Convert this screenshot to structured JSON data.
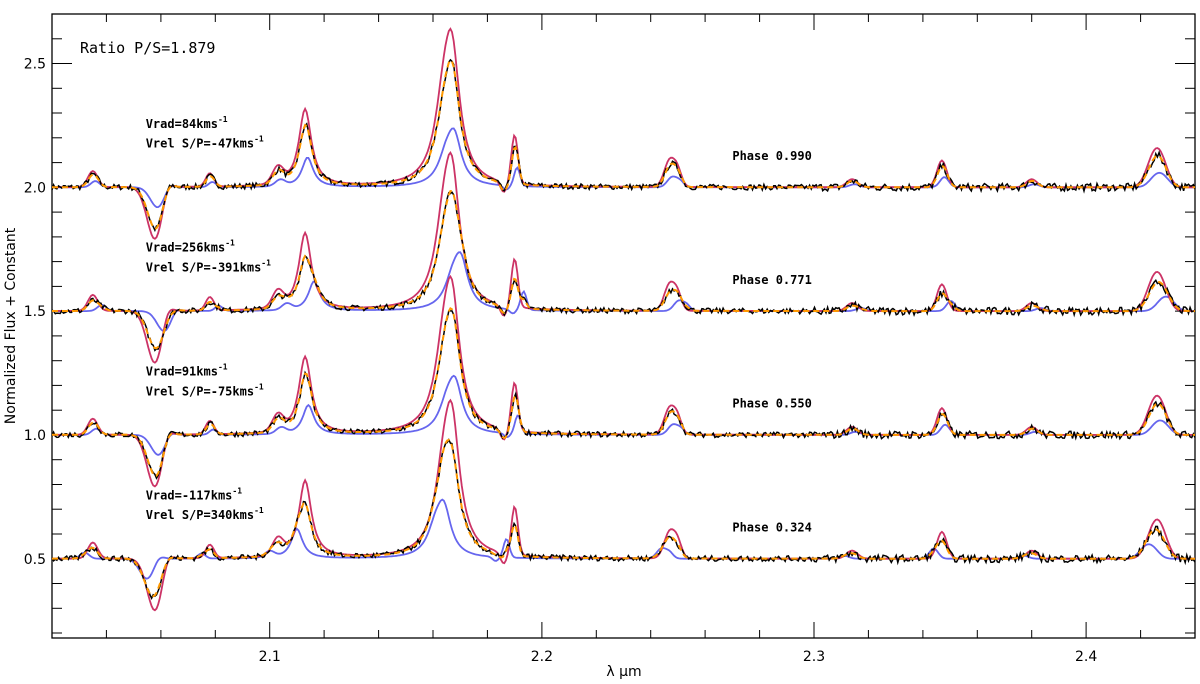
{
  "chart_data": {
    "type": "line",
    "title": "",
    "xlabel": "λ μm",
    "ylabel": "Normalized Flux + Constant",
    "xlim": [
      2.02,
      2.44
    ],
    "ylim": [
      0.18,
      2.7
    ],
    "x_ticks": [
      2.1,
      2.2,
      2.3,
      2.4
    ],
    "x_tick_labels": [
      "2.1",
      "2.2",
      "2.3",
      "2.4"
    ],
    "y_ticks": [
      0.5,
      1.0,
      1.5,
      2.0,
      2.5
    ],
    "y_tick_labels": [
      "0.5",
      "1.0",
      "1.5",
      "2.0",
      "2.5"
    ],
    "ratio_label": "Ratio P/S=1.879",
    "series_colors": {
      "observed": "#000000",
      "primary": "#cc3366",
      "secondary": "#6666ee",
      "combined": "#ff9900",
      "combined_dash": "#ffbb00"
    },
    "panels": [
      {
        "offset": 2.0,
        "phase": "Phase 0.990",
        "vrad": "Vrad=84kms",
        "vrel": "Vrel S/P=-47kms",
        "unit_sup": "-1",
        "vrad_wl": 2.1,
        "vrel_wl": 2.1,
        "label_y1": 2.24,
        "label_y2": 2.16,
        "phase_wl": 2.27,
        "phase_y": 2.11,
        "vs": 0.6,
        "lines": [
          [
            2.035,
            0.06,
            0.0018
          ],
          [
            2.058,
            -0.2,
            0.003
          ],
          [
            2.062,
            0.05,
            0.002
          ],
          [
            2.078,
            0.05,
            0.0015
          ],
          [
            2.103,
            0.06,
            0.002
          ],
          [
            2.113,
            0.29,
            0.0028
          ],
          [
            2.164,
            0.25,
            0.004
          ],
          [
            2.167,
            0.42,
            0.0035
          ],
          [
            2.19,
            0.18,
            0.0012
          ],
          [
            2.186,
            -0.04,
            0.0012
          ],
          [
            2.247,
            0.1,
            0.002
          ],
          [
            2.25,
            0.05,
            0.0015
          ],
          [
            2.314,
            0.03,
            0.002
          ],
          [
            2.347,
            0.1,
            0.0018
          ],
          [
            2.38,
            0.03,
            0.002
          ],
          [
            2.425,
            0.11,
            0.0028
          ],
          [
            2.428,
            0.06,
            0.0025
          ]
        ]
      },
      {
        "offset": 1.5,
        "phase": "Phase 0.771",
        "vrad": "Vrad=256kms",
        "vrel": "Vrel S/P=-391kms",
        "unit_sup": "-1",
        "vrad_wl": 2.1,
        "vrel_wl": 2.1,
        "label_y1": 1.74,
        "label_y2": 1.66,
        "phase_wl": 2.27,
        "phase_y": 1.61,
        "vs": 2.2,
        "lines": [
          [
            2.035,
            0.06,
            0.0018
          ],
          [
            2.058,
            -0.2,
            0.003
          ],
          [
            2.062,
            0.05,
            0.002
          ],
          [
            2.078,
            0.05,
            0.0015
          ],
          [
            2.103,
            0.06,
            0.002
          ],
          [
            2.113,
            0.29,
            0.0028
          ],
          [
            2.164,
            0.25,
            0.004
          ],
          [
            2.167,
            0.42,
            0.0035
          ],
          [
            2.19,
            0.18,
            0.0012
          ],
          [
            2.186,
            -0.04,
            0.0012
          ],
          [
            2.247,
            0.1,
            0.002
          ],
          [
            2.25,
            0.05,
            0.0015
          ],
          [
            2.314,
            0.03,
            0.002
          ],
          [
            2.347,
            0.1,
            0.0018
          ],
          [
            2.38,
            0.03,
            0.002
          ],
          [
            2.425,
            0.11,
            0.0028
          ],
          [
            2.428,
            0.06,
            0.0025
          ]
        ]
      },
      {
        "offset": 1.0,
        "phase": "Phase 0.550",
        "vrad": "Vrad=91kms",
        "vrel": "Vrel S/P=-75kms",
        "unit_sup": "-1",
        "vrad_wl": 2.1,
        "vrel_wl": 2.1,
        "label_y1": 1.24,
        "label_y2": 1.16,
        "phase_wl": 2.27,
        "phase_y": 1.11,
        "vs": 0.8,
        "lines": [
          [
            2.035,
            0.06,
            0.0018
          ],
          [
            2.058,
            -0.2,
            0.003
          ],
          [
            2.062,
            0.05,
            0.002
          ],
          [
            2.078,
            0.05,
            0.0015
          ],
          [
            2.103,
            0.06,
            0.002
          ],
          [
            2.113,
            0.29,
            0.0028
          ],
          [
            2.164,
            0.25,
            0.004
          ],
          [
            2.167,
            0.42,
            0.0035
          ],
          [
            2.19,
            0.18,
            0.0012
          ],
          [
            2.186,
            -0.04,
            0.0012
          ],
          [
            2.247,
            0.1,
            0.002
          ],
          [
            2.25,
            0.05,
            0.0015
          ],
          [
            2.314,
            0.03,
            0.002
          ],
          [
            2.347,
            0.1,
            0.0018
          ],
          [
            2.38,
            0.03,
            0.002
          ],
          [
            2.425,
            0.11,
            0.0028
          ],
          [
            2.428,
            0.06,
            0.0025
          ]
        ]
      },
      {
        "offset": 0.5,
        "phase": "Phase 0.324",
        "vrad": "Vrad=-117kms",
        "vrel": "Vrel S/P=340kms",
        "unit_sup": "-1",
        "vrad_wl": 2.1,
        "vrel_wl": 2.1,
        "label_y1": 0.74,
        "label_y2": 0.66,
        "phase_wl": 2.27,
        "phase_y": 0.61,
        "vs": -2.0,
        "lines": [
          [
            2.035,
            0.06,
            0.0018
          ],
          [
            2.058,
            -0.2,
            0.003
          ],
          [
            2.062,
            0.05,
            0.002
          ],
          [
            2.078,
            0.05,
            0.0015
          ],
          [
            2.103,
            0.06,
            0.002
          ],
          [
            2.113,
            0.29,
            0.0028
          ],
          [
            2.164,
            0.25,
            0.004
          ],
          [
            2.167,
            0.42,
            0.0035
          ],
          [
            2.19,
            0.18,
            0.0012
          ],
          [
            2.186,
            -0.04,
            0.0012
          ],
          [
            2.247,
            0.1,
            0.002
          ],
          [
            2.25,
            0.05,
            0.0015
          ],
          [
            2.314,
            0.03,
            0.002
          ],
          [
            2.347,
            0.1,
            0.0018
          ],
          [
            2.38,
            0.03,
            0.002
          ],
          [
            2.425,
            0.11,
            0.0028
          ],
          [
            2.428,
            0.06,
            0.0025
          ]
        ]
      }
    ]
  }
}
